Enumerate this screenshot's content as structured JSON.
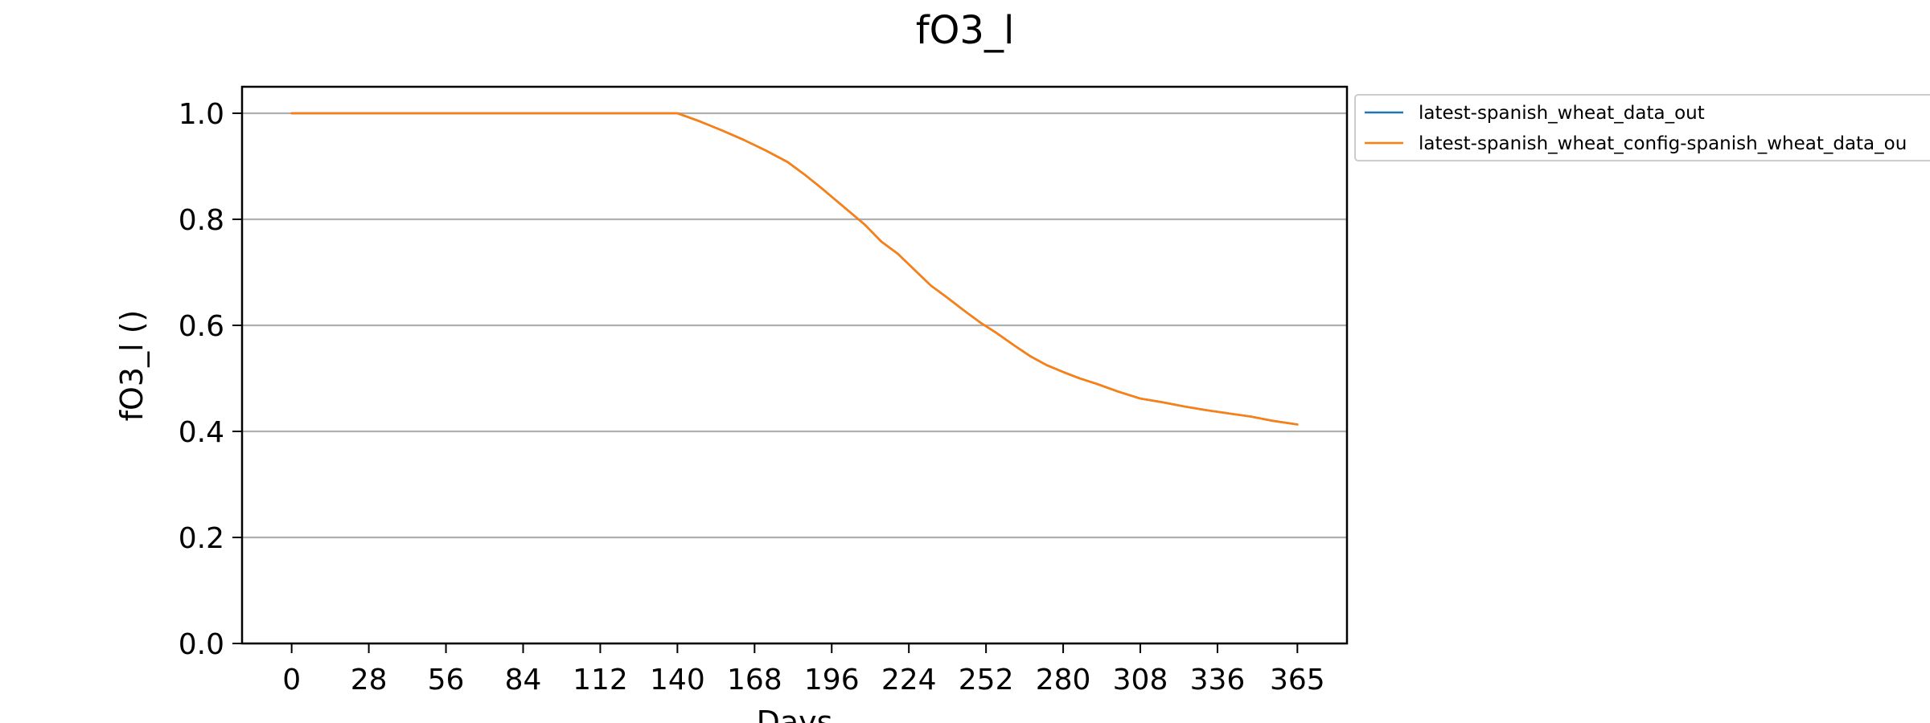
{
  "chart_data": {
    "type": "line",
    "title": "fO3_l",
    "xlabel": "Days",
    "ylabel": "fO3_l ()",
    "xlim": [
      -18,
      383
    ],
    "ylim": [
      0.0,
      1.05
    ],
    "xticks": [
      0,
      28,
      56,
      84,
      112,
      140,
      168,
      196,
      224,
      252,
      280,
      308,
      336,
      365
    ],
    "xtick_labels": [
      "0",
      "28",
      "56",
      "84",
      "112",
      "140",
      "168",
      "196",
      "224",
      "252",
      "280",
      "308",
      "336",
      "365"
    ],
    "yticks": [
      0.0,
      0.2,
      0.4,
      0.6,
      0.8,
      1.0
    ],
    "ytick_labels": [
      "0.0",
      "0.2",
      "0.4",
      "0.6",
      "0.8",
      "1.0"
    ],
    "grid": "horizontal",
    "legend_position": "outside-top-right",
    "series": [
      {
        "name": "latest-spanish_wheat_data_out",
        "color": "#1f77b4",
        "x": [
          0,
          28,
          56,
          84,
          112,
          140,
          148,
          156,
          164,
          172,
          180,
          186,
          192,
          200,
          208,
          214,
          220,
          226,
          232,
          238,
          244,
          250,
          256,
          262,
          268,
          274,
          280,
          286,
          292,
          300,
          308,
          316,
          324,
          332,
          340,
          348,
          356,
          365
        ],
        "y": [
          1.0,
          1.0,
          1.0,
          1.0,
          1.0,
          1.0,
          0.985,
          0.968,
          0.95,
          0.93,
          0.908,
          0.885,
          0.86,
          0.825,
          0.79,
          0.758,
          0.735,
          0.705,
          0.675,
          0.652,
          0.628,
          0.605,
          0.585,
          0.563,
          0.542,
          0.525,
          0.512,
          0.5,
          0.49,
          0.475,
          0.462,
          0.455,
          0.447,
          0.44,
          0.434,
          0.428,
          0.42,
          0.413
        ]
      },
      {
        "name": "latest-spanish_wheat_config-spanish_wheat_data_ou",
        "color": "#ff7f0e",
        "x": [
          0,
          28,
          56,
          84,
          112,
          140,
          148,
          156,
          164,
          172,
          180,
          186,
          192,
          200,
          208,
          214,
          220,
          226,
          232,
          238,
          244,
          250,
          256,
          262,
          268,
          274,
          280,
          286,
          292,
          300,
          308,
          316,
          324,
          332,
          340,
          348,
          356,
          365
        ],
        "y": [
          1.0,
          1.0,
          1.0,
          1.0,
          1.0,
          1.0,
          0.985,
          0.968,
          0.95,
          0.93,
          0.908,
          0.885,
          0.86,
          0.825,
          0.79,
          0.758,
          0.735,
          0.705,
          0.675,
          0.652,
          0.628,
          0.605,
          0.585,
          0.563,
          0.542,
          0.525,
          0.512,
          0.5,
          0.49,
          0.475,
          0.462,
          0.455,
          0.447,
          0.44,
          0.434,
          0.428,
          0.42,
          0.413
        ]
      }
    ]
  }
}
